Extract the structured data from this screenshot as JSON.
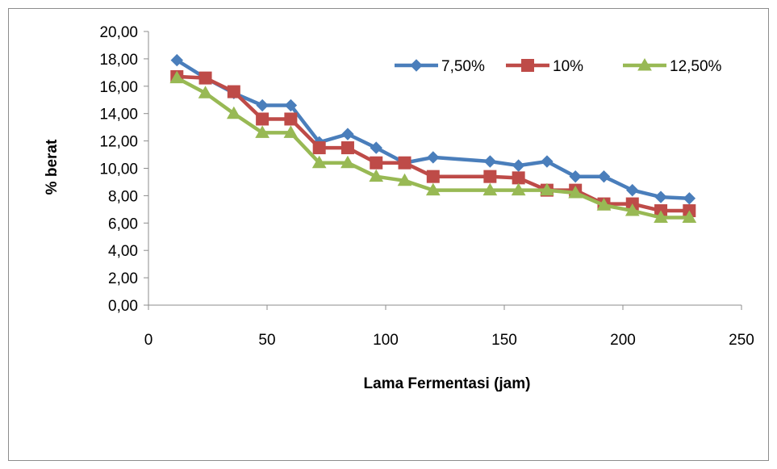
{
  "chart_data": {
    "type": "line",
    "title": "",
    "xlabel": "Lama Fermentasi (jam)",
    "ylabel": "% berat",
    "xlim": [
      0,
      250
    ],
    "ylim": [
      0,
      20
    ],
    "x_ticks": [
      0,
      50,
      100,
      150,
      200,
      250
    ],
    "x_tick_labels": [
      "0",
      "50",
      "100",
      "150",
      "200",
      "250"
    ],
    "y_ticks": [
      0,
      2,
      4,
      6,
      8,
      10,
      12,
      14,
      16,
      18,
      20
    ],
    "y_tick_labels": [
      "0,00",
      "2,00",
      "4,00",
      "6,00",
      "8,00",
      "10,00",
      "12,00",
      "14,00",
      "16,00",
      "18,00",
      "20,00"
    ],
    "grid": false,
    "legend_position": "top-right",
    "series": [
      {
        "name": "7,50%",
        "color": "#4a7ebb",
        "marker": "diamond",
        "x": [
          12,
          24,
          36,
          48,
          60,
          72,
          84,
          96,
          108,
          120,
          144,
          156,
          168,
          180,
          192,
          204,
          216,
          228
        ],
        "y": [
          17.9,
          16.6,
          15.5,
          14.6,
          14.6,
          11.9,
          12.5,
          11.5,
          10.4,
          10.8,
          10.5,
          10.2,
          10.5,
          9.4,
          9.4,
          8.4,
          7.9,
          7.8
        ]
      },
      {
        "name": "10%",
        "color": "#be4b48",
        "marker": "square",
        "x": [
          12,
          24,
          36,
          48,
          60,
          72,
          84,
          96,
          108,
          120,
          144,
          156,
          168,
          180,
          192,
          204,
          216,
          228
        ],
        "y": [
          16.7,
          16.6,
          15.6,
          13.6,
          13.6,
          11.5,
          11.5,
          10.4,
          10.4,
          9.4,
          9.4,
          9.3,
          8.4,
          8.4,
          7.4,
          7.4,
          6.9,
          6.9
        ]
      },
      {
        "name": "12,50%",
        "color": "#98b954",
        "marker": "triangle",
        "x": [
          12,
          24,
          36,
          48,
          60,
          72,
          84,
          96,
          108,
          120,
          144,
          156,
          168,
          180,
          192,
          204,
          216,
          228
        ],
        "y": [
          16.6,
          15.5,
          14.0,
          12.6,
          12.6,
          10.4,
          10.4,
          9.4,
          9.1,
          8.4,
          8.4,
          8.4,
          8.4,
          8.2,
          7.3,
          6.9,
          6.4,
          6.4
        ]
      }
    ]
  }
}
